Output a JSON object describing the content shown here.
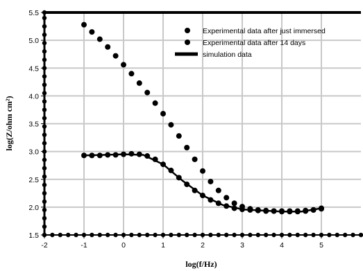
{
  "chart_data": {
    "type": "scatter",
    "xlabel": "log(f/Hz)",
    "ylabel": "log(Z/ohm cm²)",
    "xlim": [
      -2,
      6
    ],
    "ylim": [
      1.5,
      5.5
    ],
    "x_ticks": [
      -2,
      -1,
      0,
      1,
      2,
      3,
      4,
      5
    ],
    "x_tick_labels": [
      "-2",
      "-1",
      "0",
      "1",
      "2",
      "3",
      "4",
      "5"
    ],
    "y_ticks": [
      1.5,
      2.0,
      2.5,
      3.0,
      3.5,
      4.0,
      4.5,
      5.0,
      5.5
    ],
    "y_tick_labels": [
      "1.5",
      "2.0",
      "2.5",
      "3.0",
      "3.5",
      "4.0",
      "4.5",
      "5.0",
      "5.5"
    ],
    "grid": true,
    "legend_position": "top-right",
    "series": [
      {
        "name": "Experimental data after just immersed",
        "marker": "circle",
        "color": "#000000",
        "x": [
          -1.0,
          -0.8,
          -0.6,
          -0.4,
          -0.2,
          0.0,
          0.2,
          0.4,
          0.6,
          0.8,
          1.0,
          1.2,
          1.4,
          1.6,
          1.8,
          2.0,
          2.2,
          2.4,
          2.6,
          2.8,
          3.0,
          3.2,
          3.4,
          3.6,
          3.8,
          4.0,
          4.2,
          4.4,
          4.6,
          4.8,
          5.0
        ],
        "y": [
          5.28,
          5.15,
          5.02,
          4.88,
          4.72,
          4.56,
          4.4,
          4.23,
          4.06,
          3.87,
          3.68,
          3.48,
          3.28,
          3.07,
          2.86,
          2.65,
          2.46,
          2.3,
          2.17,
          2.07,
          2.01,
          1.97,
          1.95,
          1.94,
          1.93,
          1.93,
          1.93,
          1.93,
          1.94,
          1.95,
          1.97
        ]
      },
      {
        "name": "Experimental data after 14 days",
        "marker": "circle",
        "color": "#000000",
        "x": [
          -1.0,
          -0.8,
          -0.6,
          -0.4,
          -0.2,
          0.0,
          0.2,
          0.4,
          0.6,
          0.8,
          1.0,
          1.2,
          1.4,
          1.6,
          1.8,
          2.0,
          2.2,
          2.4,
          2.6,
          2.8,
          3.0,
          3.2,
          3.4,
          3.6,
          3.8,
          4.0,
          4.2,
          4.4,
          4.6,
          4.8,
          5.0
        ],
        "y": [
          2.93,
          2.93,
          2.93,
          2.94,
          2.94,
          2.95,
          2.96,
          2.95,
          2.92,
          2.86,
          2.77,
          2.66,
          2.53,
          2.41,
          2.3,
          2.21,
          2.13,
          2.07,
          2.02,
          1.98,
          1.96,
          1.95,
          1.94,
          1.93,
          1.93,
          1.92,
          1.92,
          1.92,
          1.93,
          1.95,
          1.98
        ]
      },
      {
        "name": "simulation data",
        "marker": "line",
        "color": "#000000",
        "x": [
          -1.0,
          -0.5,
          0.0,
          0.5,
          1.0,
          1.5,
          2.0,
          2.5,
          3.0,
          3.5,
          4.0,
          4.5,
          5.0
        ],
        "y": [
          2.93,
          2.94,
          2.95,
          2.94,
          2.77,
          2.47,
          2.21,
          2.04,
          1.96,
          1.94,
          1.92,
          1.92,
          1.98
        ]
      }
    ],
    "bottom_marker_row": {
      "y": 1.5,
      "x": [
        -2.0,
        -1.8,
        -1.6,
        -1.4,
        -1.2,
        -1.0,
        -0.8,
        -0.6,
        -0.4,
        -0.2,
        0.0,
        0.2,
        0.4,
        0.6,
        0.8,
        1.0,
        1.2,
        1.4,
        1.6,
        1.8,
        2.0,
        2.2,
        2.4,
        2.6,
        2.8,
        3.0,
        3.2,
        3.4,
        3.6,
        3.8,
        4.0,
        4.2,
        4.4,
        4.6,
        4.8,
        5.0,
        5.2,
        5.4,
        5.6,
        5.8,
        6.0
      ]
    },
    "left_marker_column": {
      "x": -2,
      "y": [
        1.5,
        1.65,
        1.8,
        1.95,
        2.1,
        2.25,
        2.4,
        2.55,
        2.7,
        2.85,
        3.0,
        3.15,
        3.3,
        3.45,
        3.6,
        3.75,
        3.9,
        4.05,
        4.2,
        4.35,
        4.5,
        4.65,
        4.8,
        4.95,
        5.1,
        5.25,
        5.4,
        5.5
      ]
    }
  }
}
